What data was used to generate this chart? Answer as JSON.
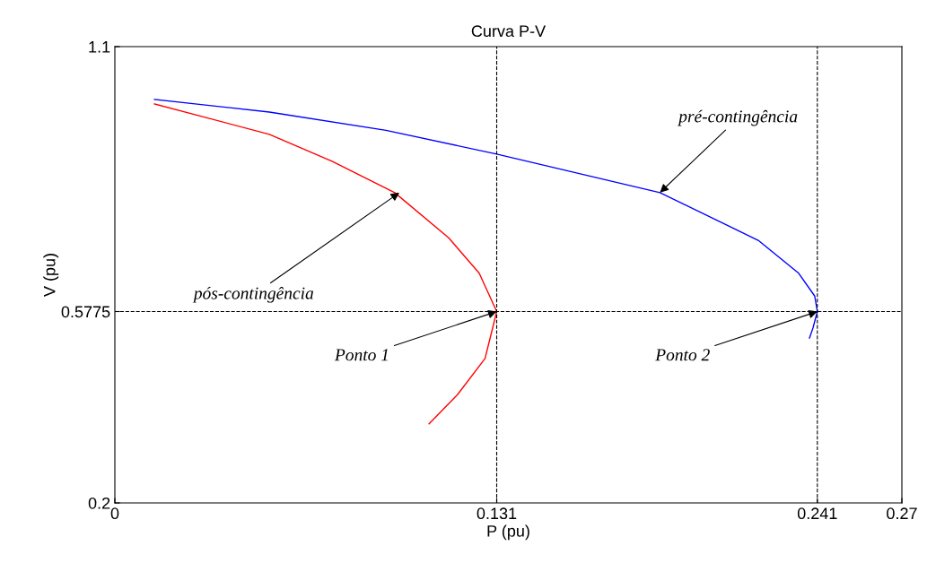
{
  "chart_data": {
    "type": "line",
    "title": "Curva P-V",
    "xlabel": "P (pu)",
    "ylabel": "V (pu)",
    "xlim": [
      0,
      0.27
    ],
    "ylim": [
      0.2,
      1.1
    ],
    "xticks": [
      0,
      0.131,
      0.241,
      0.27
    ],
    "yticks": [
      0.2,
      0.5775,
      1.1
    ],
    "grid": false,
    "legend": false,
    "marker": "none",
    "line_style": "solid",
    "series": [
      {
        "color": "#0000ff",
        "x": [
          0.0136,
          0.053,
          0.093,
          0.131,
          0.187,
          0.2207,
          0.2346,
          0.2401,
          0.241,
          0.2395,
          0.2383
        ],
        "values": [
          0.996,
          0.971,
          0.935,
          0.888,
          0.812,
          0.718,
          0.653,
          0.608,
          0.5775,
          0.545,
          0.525
        ]
      },
      {
        "color": "#ff0000",
        "x": [
          0.0136,
          0.053,
          0.0745,
          0.096,
          0.1145,
          0.125,
          0.131,
          0.127,
          0.1176,
          0.1078
        ],
        "values": [
          0.987,
          0.927,
          0.874,
          0.812,
          0.723,
          0.653,
          0.5775,
          0.485,
          0.414,
          0.356
        ]
      }
    ],
    "ref_lines": [
      {
        "axis": "x",
        "value": 0.131,
        "color": "#000000",
        "line_style": "dashed"
      },
      {
        "axis": "x",
        "value": 0.241,
        "color": "#000000",
        "line_style": "dashed"
      },
      {
        "axis": "y",
        "value": 0.5775,
        "color": "#000000",
        "line_style": "dashed"
      }
    ],
    "annotations": [
      {
        "text": "pré-contingência",
        "x": 0.187,
        "y": 0.812
      },
      {
        "text": "pós-contingência",
        "x": 0.0976,
        "y": 0.812
      },
      {
        "text": "Ponto 1",
        "x": 0.131,
        "y": 0.5775
      },
      {
        "text": "Ponto 2",
        "x": 0.241,
        "y": 0.5775
      }
    ]
  }
}
